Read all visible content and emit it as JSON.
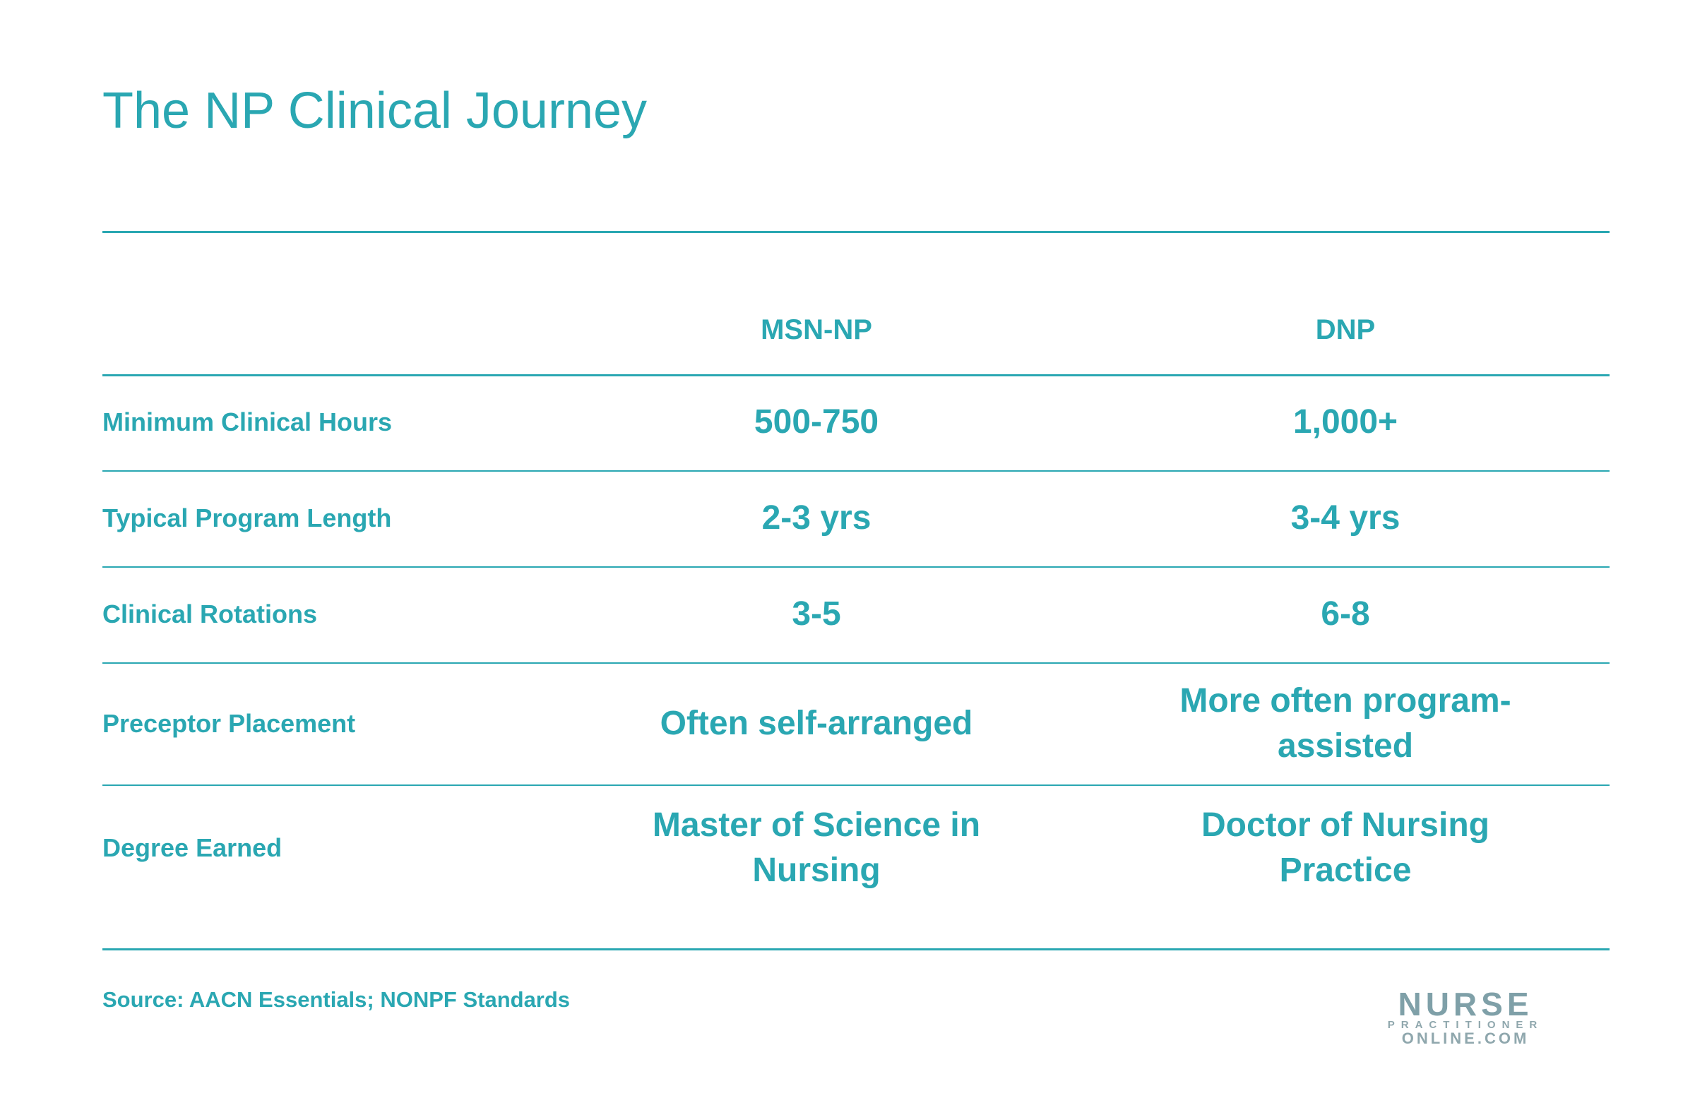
{
  "title": "The NP Clinical Journey",
  "table": {
    "columns": [
      "MSN-NP",
      "DNP"
    ],
    "rows": [
      [
        "Minimum Clinical Hours",
        "500-750",
        "1,000+"
      ],
      [
        "Typical Program Length",
        "2-3 yrs",
        "3-4 yrs"
      ],
      [
        "Clinical Rotations",
        "3-5",
        "6-8"
      ],
      [
        "Preceptor Placement",
        "Often self-arranged",
        "More often program-assisted"
      ],
      [
        "Degree Earned",
        "Master of Science in Nursing",
        "Doctor of Nursing Practice"
      ]
    ]
  },
  "source": "Source: AACN Essentials; NONPF Standards",
  "logo": {
    "line1": "NURSE",
    "line2": "PRACTITIONER",
    "line3": "ONLINE.COM"
  }
}
